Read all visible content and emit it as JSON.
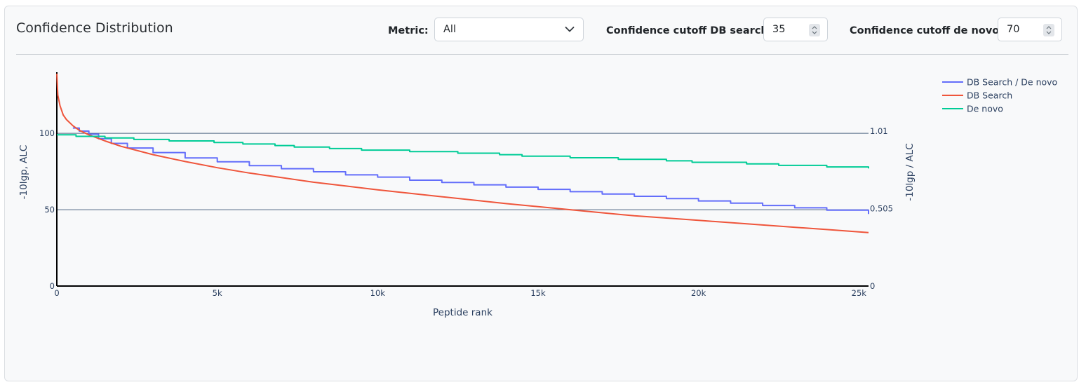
{
  "card": {
    "title": "Confidence Distribution"
  },
  "controls": {
    "metric": {
      "label": "Metric:",
      "value": "All"
    },
    "cutoff_db": {
      "label": "Confidence cutoff DB search:",
      "value": "35"
    },
    "cutoff_denovo": {
      "label": "Confidence cutoff de novo:",
      "value": "70"
    }
  },
  "icons": {
    "dropdown": "chevron-down-icon",
    "stepper": "up-down-spinner-icon"
  },
  "chart_data": {
    "type": "line",
    "xlabel": "Peptide rank",
    "ylabel": "-10lgp, ALC",
    "y2label": "-10lgp / ALC",
    "xlim": [
      0,
      25300
    ],
    "ylim": [
      0,
      140
    ],
    "y2lim": [
      0,
      1.3939
    ],
    "x_ticks": [
      {
        "value": 0,
        "label": "0"
      },
      {
        "value": 5000,
        "label": "5k"
      },
      {
        "value": 10000,
        "label": "10k"
      },
      {
        "value": 15000,
        "label": "15k"
      },
      {
        "value": 20000,
        "label": "20k"
      },
      {
        "value": 25000,
        "label": "25k"
      }
    ],
    "y_ticks": [
      {
        "value": 0,
        "label": "0"
      },
      {
        "value": 50,
        "label": "50"
      },
      {
        "value": 100,
        "label": "100"
      }
    ],
    "y2_ticks": [
      {
        "value": 0,
        "label": "0"
      },
      {
        "value": 0.505,
        "label": "0.505"
      },
      {
        "value": 1.01,
        "label": "1.01"
      }
    ],
    "grid": true,
    "legend_position": "top-right",
    "series": [
      {
        "name": "DB Search / De novo",
        "color": "#636efa",
        "axis": "y2",
        "step": true,
        "x": [
          500,
          700,
          1000,
          1300,
          1700,
          2200,
          3000,
          4000,
          5000,
          6000,
          7000,
          8000,
          9000,
          10000,
          11000,
          12000,
          13000,
          14000,
          15000,
          16000,
          17000,
          18000,
          19000,
          20000,
          21000,
          22000,
          23000,
          24000,
          25300
        ],
        "values": [
          1.03,
          1.01,
          0.99,
          0.96,
          0.93,
          0.9,
          0.87,
          0.835,
          0.81,
          0.785,
          0.765,
          0.745,
          0.725,
          0.71,
          0.69,
          0.675,
          0.66,
          0.645,
          0.63,
          0.615,
          0.6,
          0.585,
          0.57,
          0.555,
          0.54,
          0.525,
          0.51,
          0.495,
          0.47
        ]
      },
      {
        "name": "DB Search",
        "color": "#ef553b",
        "axis": "y",
        "step": false,
        "x": [
          0,
          30,
          100,
          200,
          300,
          500,
          700,
          1000,
          1500,
          2000,
          3000,
          4000,
          5000,
          6000,
          7000,
          8000,
          9000,
          10000,
          12000,
          14000,
          16000,
          18000,
          20000,
          22000,
          24000,
          25300
        ],
        "values": [
          139,
          125,
          118,
          112,
          109,
          105,
          102,
          99,
          95,
          91.5,
          86,
          81.5,
          77.5,
          74,
          71,
          68,
          65.5,
          63,
          58.5,
          54,
          50,
          46,
          43,
          40,
          37,
          35
        ]
      },
      {
        "name": "De novo",
        "color": "#00cc96",
        "axis": "y",
        "step": true,
        "x": [
          0,
          600,
          1500,
          2400,
          3500,
          4900,
          5800,
          6800,
          7400,
          8500,
          9500,
          11000,
          12500,
          13800,
          14500,
          16000,
          17500,
          19000,
          19800,
          21500,
          22500,
          24000,
          25300
        ],
        "values": [
          99,
          98,
          97,
          96,
          95,
          94,
          93,
          92,
          91,
          90,
          89,
          88,
          87,
          86,
          85,
          84,
          83,
          82,
          81,
          80,
          79,
          78,
          77
        ]
      }
    ]
  }
}
